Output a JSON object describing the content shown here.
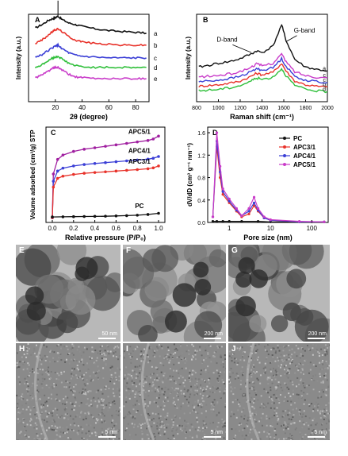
{
  "colors": {
    "black": "#111111",
    "red": "#e8322a",
    "blue": "#3b3fd6",
    "green": "#2fbf3a",
    "magenta": "#c93cc9",
    "purple": "#a01fa0"
  },
  "chart_data": [
    {
      "panel": "A",
      "type": "line",
      "xlabel": "2θ (degree)",
      "ylabel": "Intensity (a.u.)",
      "xlim": [
        0,
        90
      ],
      "xticks": [
        "20",
        "40",
        "60",
        "80"
      ],
      "series": [
        {
          "name": "a",
          "x": [
            5,
            10,
            15,
            18,
            20,
            22,
            25,
            30,
            35,
            40,
            50,
            60,
            70,
            80,
            88
          ],
          "y": [
            0.86,
            0.9,
            0.95,
            0.97,
            0.98,
            1.0,
            0.96,
            0.92,
            0.9,
            0.88,
            0.85,
            0.83,
            0.82,
            0.81,
            0.8
          ]
        },
        {
          "name": "b",
          "x": [
            5,
            10,
            15,
            18,
            20,
            22,
            25,
            30,
            35,
            40,
            50,
            60,
            70,
            80,
            88
          ],
          "y": [
            0.68,
            0.72,
            0.78,
            0.82,
            0.84,
            0.85,
            0.82,
            0.76,
            0.72,
            0.7,
            0.68,
            0.67,
            0.66,
            0.66,
            0.66
          ]
        },
        {
          "name": "c",
          "x": [
            5,
            10,
            15,
            18,
            20,
            22,
            25,
            30,
            35,
            40,
            50,
            60,
            70,
            80,
            88
          ],
          "y": [
            0.52,
            0.55,
            0.6,
            0.63,
            0.65,
            0.66,
            0.62,
            0.57,
            0.54,
            0.53,
            0.52,
            0.51,
            0.51,
            0.51,
            0.51
          ]
        },
        {
          "name": "d",
          "x": [
            5,
            10,
            15,
            18,
            20,
            22,
            25,
            30,
            35,
            40,
            50,
            60,
            70,
            80,
            88
          ],
          "y": [
            0.4,
            0.43,
            0.48,
            0.51,
            0.52,
            0.53,
            0.5,
            0.45,
            0.42,
            0.41,
            0.4,
            0.4,
            0.4,
            0.4,
            0.4
          ]
        },
        {
          "name": "e",
          "x": [
            5,
            10,
            15,
            18,
            20,
            22,
            25,
            30,
            35,
            40,
            50,
            60,
            70,
            80,
            88
          ],
          "y": [
            0.28,
            0.31,
            0.36,
            0.39,
            0.4,
            0.4,
            0.37,
            0.32,
            0.29,
            0.28,
            0.27,
            0.27,
            0.27,
            0.27,
            0.27
          ]
        }
      ],
      "annotations": []
    },
    {
      "panel": "B",
      "type": "line",
      "xlabel": "Raman shift (cm⁻¹)",
      "ylabel": "Intensity (a.u.)",
      "xlim": [
        800,
        2000
      ],
      "xticks": [
        "800",
        "1000",
        "1200",
        "1400",
        "1600",
        "1800",
        "2000"
      ],
      "series": [
        {
          "name": "a",
          "x": [
            820,
            900,
            1000,
            1100,
            1200,
            1300,
            1350,
            1400,
            1500,
            1580,
            1620,
            1700,
            1800,
            1900,
            2000
          ],
          "y": [
            0.45,
            0.47,
            0.5,
            0.52,
            0.56,
            0.62,
            0.66,
            0.64,
            0.72,
            1.0,
            0.8,
            0.55,
            0.45,
            0.42,
            0.4
          ]
        },
        {
          "name": "b",
          "x": [
            820,
            900,
            1000,
            1100,
            1200,
            1300,
            1350,
            1400,
            1500,
            1580,
            1620,
            1700,
            1800,
            1900,
            2000
          ],
          "y": [
            0.2,
            0.21,
            0.22,
            0.24,
            0.27,
            0.33,
            0.37,
            0.35,
            0.38,
            0.5,
            0.4,
            0.27,
            0.22,
            0.2,
            0.19
          ]
        },
        {
          "name": "c",
          "x": [
            820,
            900,
            1000,
            1100,
            1200,
            1300,
            1350,
            1400,
            1500,
            1580,
            1620,
            1700,
            1800,
            1900,
            2000
          ],
          "y": [
            0.26,
            0.27,
            0.28,
            0.3,
            0.33,
            0.39,
            0.43,
            0.41,
            0.44,
            0.56,
            0.46,
            0.33,
            0.28,
            0.26,
            0.25
          ]
        },
        {
          "name": "c",
          "x": [
            820,
            900,
            1000,
            1100,
            1200,
            1300,
            1350,
            1400,
            1500,
            1580,
            1620,
            1700,
            1800,
            1900,
            2000
          ],
          "y": [
            0.32,
            0.33,
            0.34,
            0.36,
            0.39,
            0.45,
            0.49,
            0.47,
            0.5,
            0.62,
            0.52,
            0.39,
            0.34,
            0.32,
            0.31
          ]
        },
        {
          "name": "d",
          "x": [
            820,
            900,
            1000,
            1100,
            1200,
            1300,
            1350,
            1400,
            1500,
            1580,
            1620,
            1700,
            1800,
            1900,
            2000
          ],
          "y": [
            0.14,
            0.15,
            0.16,
            0.18,
            0.21,
            0.27,
            0.31,
            0.29,
            0.32,
            0.43,
            0.34,
            0.21,
            0.16,
            0.14,
            0.13
          ]
        }
      ],
      "annotations": [
        "D-band",
        "G-band"
      ]
    },
    {
      "panel": "C",
      "type": "line",
      "xlabel": "Relative pressure (P/P₀)",
      "ylabel": "Volume adsorbed (cm³/g) STP",
      "xlim": [
        0,
        1.0
      ],
      "xticks": [
        "0.0",
        "0.2",
        "0.4",
        "0.6",
        "0.8",
        "1.0"
      ],
      "series": [
        {
          "name": "APC5/1",
          "x": [
            0,
            0.01,
            0.05,
            0.1,
            0.2,
            0.3,
            0.4,
            0.5,
            0.6,
            0.7,
            0.8,
            0.9,
            0.95,
            1.0
          ],
          "y": [
            0,
            300,
            400,
            430,
            455,
            470,
            480,
            490,
            500,
            510,
            520,
            530,
            540,
            560
          ]
        },
        {
          "name": "APC4/1",
          "x": [
            0,
            0.01,
            0.05,
            0.1,
            0.2,
            0.3,
            0.4,
            0.5,
            0.6,
            0.7,
            0.8,
            0.9,
            0.95,
            1.0
          ],
          "y": [
            0,
            250,
            320,
            340,
            355,
            365,
            372,
            378,
            384,
            390,
            396,
            402,
            408,
            420
          ]
        },
        {
          "name": "APC3/1",
          "x": [
            0,
            0.01,
            0.05,
            0.1,
            0.2,
            0.3,
            0.4,
            0.5,
            0.6,
            0.7,
            0.8,
            0.9,
            0.95,
            1.0
          ],
          "y": [
            0,
            210,
            270,
            285,
            297,
            305,
            310,
            315,
            320,
            325,
            330,
            336,
            342,
            355
          ]
        },
        {
          "name": "PC",
          "x": [
            0,
            0.1,
            0.2,
            0.3,
            0.4,
            0.5,
            0.6,
            0.7,
            0.8,
            0.9,
            1.0
          ],
          "y": [
            5,
            6,
            7,
            8,
            9,
            10,
            12,
            14,
            17,
            22,
            30
          ]
        }
      ]
    },
    {
      "panel": "D",
      "type": "line",
      "xlabel": "Pore size (nm)",
      "ylabel": "dV/dD (cm³ g⁻¹ nm⁻¹)",
      "xscale": "log",
      "xticks": [
        "1",
        "10",
        "100"
      ],
      "ylim": [
        0,
        1.6
      ],
      "yticks": [
        "0.0",
        "0.4",
        "0.8",
        "1.2",
        "1.6"
      ],
      "legend": [
        "PC",
        "APC3/1",
        "APC4/1",
        "APC5/1"
      ],
      "series": [
        {
          "name": "PC",
          "x": [
            0.4,
            0.5,
            0.7,
            1,
            2,
            5,
            10,
            50,
            100,
            200
          ],
          "y": [
            0.02,
            0.02,
            0.02,
            0.02,
            0.02,
            0.02,
            0.01,
            0.01,
            0.01,
            0.01
          ]
        },
        {
          "name": "APC3/1",
          "x": [
            0.4,
            0.5,
            0.6,
            0.7,
            1,
            1.5,
            2,
            3,
            4,
            5,
            7,
            10,
            50,
            200
          ],
          "y": [
            0.1,
            1.35,
            0.8,
            0.5,
            0.35,
            0.2,
            0.1,
            0.15,
            0.3,
            0.2,
            0.08,
            0.04,
            0.01,
            0.01
          ]
        },
        {
          "name": "APC4/1",
          "x": [
            0.4,
            0.5,
            0.6,
            0.7,
            1,
            1.5,
            2,
            3,
            4,
            5,
            7,
            10,
            50,
            200
          ],
          "y": [
            0.1,
            1.45,
            0.9,
            0.55,
            0.38,
            0.22,
            0.12,
            0.2,
            0.35,
            0.22,
            0.08,
            0.04,
            0.01,
            0.01
          ]
        },
        {
          "name": "APC5/1",
          "x": [
            0.4,
            0.5,
            0.6,
            0.7,
            1,
            1.5,
            2,
            3,
            4,
            5,
            7,
            10,
            50,
            200
          ],
          "y": [
            0.1,
            1.6,
            1.0,
            0.6,
            0.42,
            0.25,
            0.12,
            0.25,
            0.45,
            0.25,
            0.1,
            0.05,
            0.02,
            0.01
          ]
        }
      ]
    }
  ],
  "images": [
    {
      "label": "E",
      "scale": "50 nm"
    },
    {
      "label": "F",
      "scale": "200 nm"
    },
    {
      "label": "G",
      "scale": "200 nm"
    },
    {
      "label": "H",
      "scale": "5 nm"
    },
    {
      "label": "I",
      "scale": "5 nm"
    },
    {
      "label": "J",
      "scale": "5 nm"
    }
  ]
}
